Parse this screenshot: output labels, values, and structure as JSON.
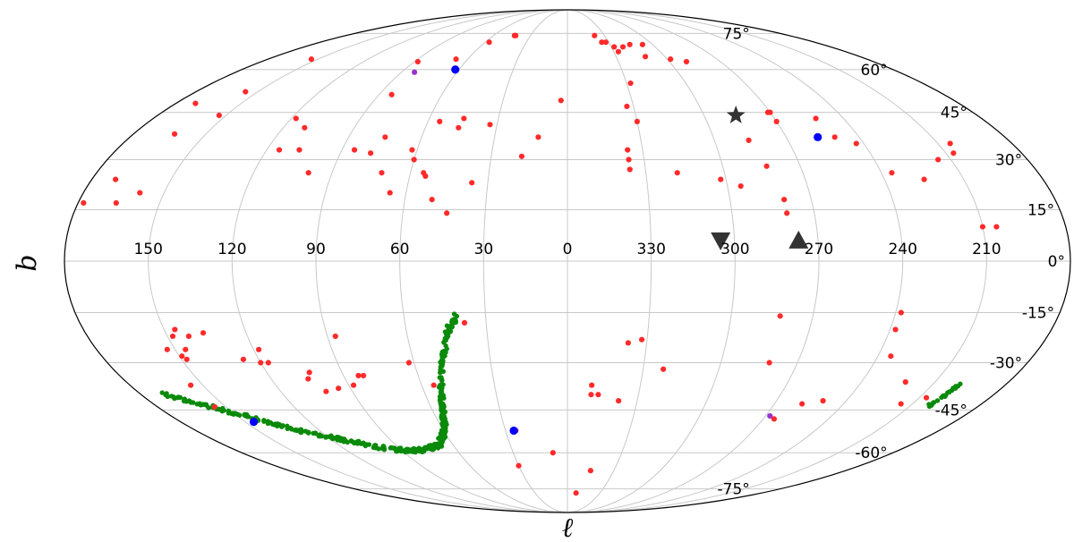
{
  "chart_data": {
    "type": "scatter",
    "projection": "mollweide",
    "title": "",
    "xlabel": "ℓ",
    "ylabel": "b",
    "grid": true,
    "lon_ticks": [
      150,
      120,
      90,
      60,
      30,
      0,
      330,
      300,
      270,
      240,
      210
    ],
    "lon_tick_labels": [
      "150",
      "120",
      "90",
      "60",
      "30",
      "0",
      "330",
      "300",
      "270",
      "240",
      "210"
    ],
    "lat_ticks": [
      75,
      60,
      45,
      30,
      15,
      0,
      -15,
      -30,
      -45,
      -60,
      -75
    ],
    "lat_tick_labels": [
      "75°",
      "60°",
      "45°",
      "30°",
      "15°",
      "0°",
      "-15°",
      "-30°",
      "-45°",
      "-60°",
      "-75°"
    ],
    "colors": {
      "red": "#ff2a2a",
      "blue": "#0000ff",
      "purple": "#9a32cd",
      "green": "#0a8a0a",
      "marker": "#333333",
      "grid": "#c8c8c8",
      "frame": "#000000"
    },
    "series": [
      {
        "color": "red",
        "marker": "circle",
        "points": [
          [
            154,
            64
          ],
          [
            156,
            52
          ],
          [
            163,
            38
          ],
          [
            159,
            20
          ],
          [
            171,
            48
          ],
          [
            178,
            17
          ],
          [
            166,
            17
          ],
          [
            171,
            24
          ],
          [
            153,
            44
          ],
          [
            118,
            43
          ],
          [
            111,
            40
          ],
          [
            107,
            33
          ],
          [
            115,
            33
          ],
          [
            84,
            51
          ],
          [
            85,
            33
          ],
          [
            88,
            63
          ],
          [
            99,
            26
          ],
          [
            78,
            32
          ],
          [
            75,
            37
          ],
          [
            71,
            26
          ],
          [
            66,
            20
          ],
          [
            62,
            33
          ],
          [
            55,
            42
          ],
          [
            60,
            30
          ],
          [
            55,
            26
          ],
          [
            54,
            25
          ],
          [
            50,
            18
          ],
          [
            44,
            14
          ],
          [
            45,
            43
          ],
          [
            46,
            40
          ],
          [
            36,
            23
          ],
          [
            33,
            41
          ],
          [
            12,
            37
          ],
          [
            3,
            49
          ],
          [
            18,
            31
          ],
          [
            43,
            74
          ],
          [
            42,
            74
          ],
          [
            67,
            64
          ],
          [
            57,
            71
          ],
          [
            338,
            74
          ],
          [
            335,
            71
          ],
          [
            332,
            71
          ],
          [
            328,
            69
          ],
          [
            327,
            67
          ],
          [
            322,
            69
          ],
          [
            316,
            70
          ],
          [
            312,
            65
          ],
          [
            307,
            70
          ],
          [
            298,
            64
          ],
          [
            290,
            63
          ],
          [
            328,
            55
          ],
          [
            333,
            47
          ],
          [
            330,
            42
          ],
          [
            336,
            33
          ],
          [
            336,
            30
          ],
          [
            336,
            27
          ],
          [
            318,
            26
          ],
          [
            302,
            24
          ],
          [
            295,
            22
          ],
          [
            286,
            36
          ],
          [
            283,
            28
          ],
          [
            280,
            18
          ],
          [
            280,
            14
          ],
          [
            270,
            45
          ],
          [
            270,
            42
          ],
          [
            252,
            43
          ],
          [
            250,
            37
          ],
          [
            243,
            35
          ],
          [
            236,
            26
          ],
          [
            225,
            24
          ],
          [
            205,
            35
          ],
          [
            207,
            32
          ],
          [
            215,
            30
          ],
          [
            210,
            10
          ],
          [
            205,
            10
          ],
          [
            271,
            45
          ],
          [
            148,
            -22
          ],
          [
            153,
            -26
          ],
          [
            155,
            -37
          ],
          [
            155,
            -44
          ],
          [
            149,
            -28
          ],
          [
            148,
            -29
          ],
          [
            146,
            -26
          ],
          [
            146,
            -20
          ],
          [
            142,
            -22
          ],
          [
            136,
            -21
          ],
          [
            126,
            -29
          ],
          [
            120,
            -30
          ],
          [
            117,
            -30
          ],
          [
            118,
            -26
          ],
          [
            103,
            -33
          ],
          [
            101,
            -39
          ],
          [
            105,
            -35
          ],
          [
            95,
            -38
          ],
          [
            88,
            -37
          ],
          [
            84,
            -34
          ],
          [
            82,
            -34
          ],
          [
            87,
            -22
          ],
          [
            62,
            -30
          ],
          [
            55,
            -37
          ],
          [
            38,
            -18
          ],
          [
            25,
            -52
          ],
          [
            30,
            -65
          ],
          [
            8,
            -60
          ],
          [
            352,
            -77
          ],
          [
            345,
            -67
          ],
          [
            350,
            -37
          ],
          [
            350,
            -40
          ],
          [
            347,
            -40
          ],
          [
            338,
            -42
          ],
          [
            337,
            -24
          ],
          [
            332,
            -23
          ],
          [
            322,
            -32
          ],
          [
            281,
            -30
          ],
          [
            282,
            -16
          ],
          [
            265,
            -48
          ],
          [
            258,
            -43
          ],
          [
            250,
            -42
          ],
          [
            238,
            -15
          ],
          [
            238,
            -20
          ],
          [
            235,
            -28
          ],
          [
            222,
            -36
          ],
          [
            215,
            -43
          ],
          [
            207,
            -41
          ]
        ]
      },
      {
        "color": "blue",
        "marker": "circle",
        "points": [
          [
            62,
            60
          ],
          [
            257,
            37
          ],
          [
            26,
            -52
          ],
          [
            146,
            -49
          ]
        ]
      },
      {
        "color": "purple",
        "marker": "circle",
        "points": [
          [
            83,
            59
          ],
          [
            268,
            -47
          ]
        ]
      },
      {
        "color": "marker",
        "marker": "star",
        "points": [
          [
            286,
            44
          ]
        ]
      },
      {
        "color": "marker",
        "marker": "triangle-down",
        "points": [
          [
            305,
            6
          ]
        ]
      },
      {
        "color": "marker",
        "marker": "triangle-up",
        "points": [
          [
            277,
            6
          ]
        ]
      }
    ],
    "stream": {
      "color": "green",
      "marker": "circle",
      "spine": [
        [
          170,
          -40
        ],
        [
          160,
          -43
        ],
        [
          150,
          -46
        ],
        [
          140,
          -49
        ],
        [
          130,
          -52
        ],
        [
          120,
          -54
        ],
        [
          110,
          -56
        ],
        [
          100,
          -58
        ],
        [
          90,
          -59
        ],
        [
          80,
          -59
        ],
        [
          72,
          -58
        ],
        [
          67,
          -57
        ],
        [
          62,
          -54
        ],
        [
          58,
          -50
        ],
        [
          55,
          -44
        ],
        [
          52,
          -37
        ],
        [
          48,
          -28
        ],
        [
          45,
          -21
        ],
        [
          41,
          -16
        ]
      ],
      "spine_east": [
        [
          199,
          -37
        ],
        [
          200,
          -39
        ],
        [
          201,
          -42
        ],
        [
          202,
          -44
        ]
      ]
    }
  }
}
